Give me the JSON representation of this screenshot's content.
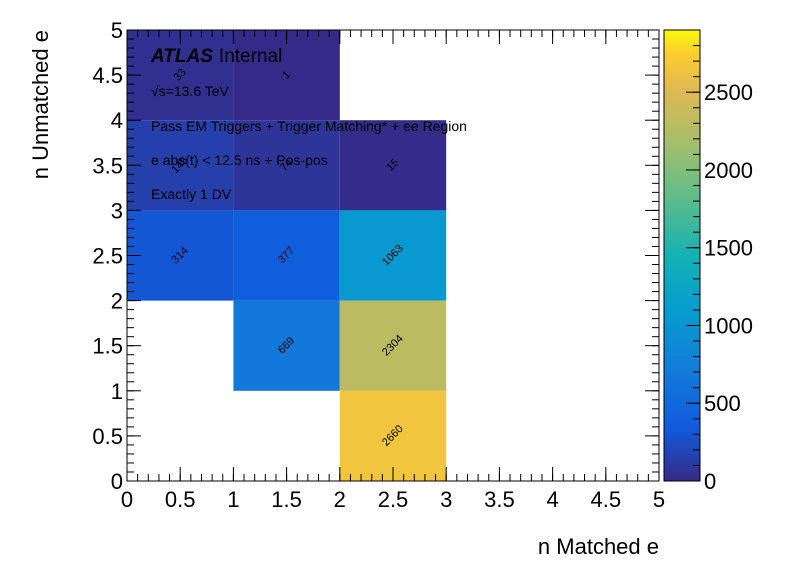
{
  "chart_data": {
    "type": "heatmap",
    "xlabel": "n Matched e",
    "ylabel": "n Unmatched e",
    "xlim": [
      0,
      5
    ],
    "ylim": [
      0,
      5
    ],
    "x_ticks": [
      "0",
      "0.5",
      "1",
      "1.5",
      "2",
      "2.5",
      "3",
      "3.5",
      "4",
      "4.5",
      "5"
    ],
    "y_ticks": [
      "0",
      "0.5",
      "1",
      "1.5",
      "2",
      "2.5",
      "3",
      "3.5",
      "4",
      "4.5",
      "5"
    ],
    "colorbar": {
      "min": 0,
      "max": 2900,
      "ticks": [
        "0",
        "500",
        "1000",
        "1500",
        "2000",
        "2500"
      ],
      "tick_values": [
        0,
        500,
        1000,
        1500,
        2000,
        2500
      ]
    },
    "colormap": "viridis-like",
    "cells": [
      {
        "x_bin": [
          0,
          1
        ],
        "y_bin": [
          4,
          5
        ],
        "value": 33,
        "label": "33"
      },
      {
        "x_bin": [
          1,
          2
        ],
        "y_bin": [
          4,
          5
        ],
        "value": 1,
        "label": "1"
      },
      {
        "x_bin": [
          0,
          1
        ],
        "y_bin": [
          3,
          4
        ],
        "value": 145,
        "label": "145"
      },
      {
        "x_bin": [
          1,
          2
        ],
        "y_bin": [
          3,
          4
        ],
        "value": 74,
        "label": "74"
      },
      {
        "x_bin": [
          2,
          3
        ],
        "y_bin": [
          3,
          4
        ],
        "value": 15,
        "label": "15"
      },
      {
        "x_bin": [
          0,
          1
        ],
        "y_bin": [
          2,
          3
        ],
        "value": 314,
        "label": "314"
      },
      {
        "x_bin": [
          1,
          2
        ],
        "y_bin": [
          2,
          3
        ],
        "value": 377,
        "label": "377"
      },
      {
        "x_bin": [
          2,
          3
        ],
        "y_bin": [
          2,
          3
        ],
        "value": 1063,
        "label": "1063"
      },
      {
        "x_bin": [
          1,
          2
        ],
        "y_bin": [
          1,
          2
        ],
        "value": 669,
        "label": "669"
      },
      {
        "x_bin": [
          2,
          3
        ],
        "y_bin": [
          1,
          2
        ],
        "value": 2304,
        "label": "2304"
      },
      {
        "x_bin": [
          2,
          3
        ],
        "y_bin": [
          0,
          1
        ],
        "value": 2660,
        "label": "2660"
      }
    ],
    "annotations": {
      "atlas": "ATLAS",
      "internal": "Internal",
      "energy": "√s=13.6 TeV",
      "selection": "Pass EM Triggers + Trigger Matching* + ee Region",
      "timing": "e abs(t) < 12.5 ns + Pos-pos",
      "dv": "Exactly 1 DV"
    }
  }
}
